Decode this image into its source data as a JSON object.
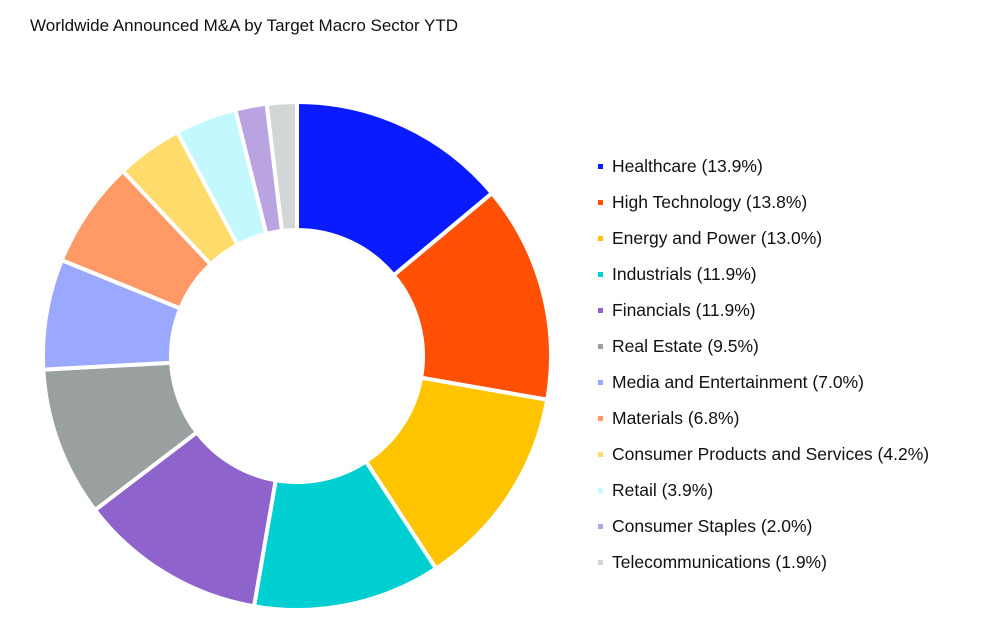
{
  "chart_data": {
    "type": "pie",
    "title": "Worldwide Announced M&A by Target Macro Sector YTD",
    "legend_position": "right",
    "donut": true,
    "slices": [
      {
        "label": "Healthcare (13.9%)",
        "value": 13.9,
        "color": "#0a1cff"
      },
      {
        "label": "High Technology (13.8%)",
        "value": 13.8,
        "color": "#ff5005"
      },
      {
        "label": "Energy and Power (13.0%)",
        "value": 13.0,
        "color": "#ffc400"
      },
      {
        "label": "Industrials (11.9%)",
        "value": 11.9,
        "color": "#00cfd1"
      },
      {
        "label": "Financials (11.9%)",
        "value": 11.9,
        "color": "#8e63cc"
      },
      {
        "label": "Real Estate (9.5%)",
        "value": 9.5,
        "color": "#9aa0a0"
      },
      {
        "label": "Media and Entertainment (7.0%)",
        "value": 7.0,
        "color": "#9aa8ff"
      },
      {
        "label": "Materials (6.8%)",
        "value": 6.8,
        "color": "#ff9966"
      },
      {
        "label": "Consumer Products and Services (4.2%)",
        "value": 4.2,
        "color": "#ffdb6b"
      },
      {
        "label": "Retail (3.9%)",
        "value": 3.9,
        "color": "#c3f8ff"
      },
      {
        "label": "Consumer Staples (2.0%)",
        "value": 2.0,
        "color": "#b9a3e0"
      },
      {
        "label": "Telecommunications (1.9%)",
        "value": 1.9,
        "color": "#d3d6d6"
      }
    ]
  }
}
